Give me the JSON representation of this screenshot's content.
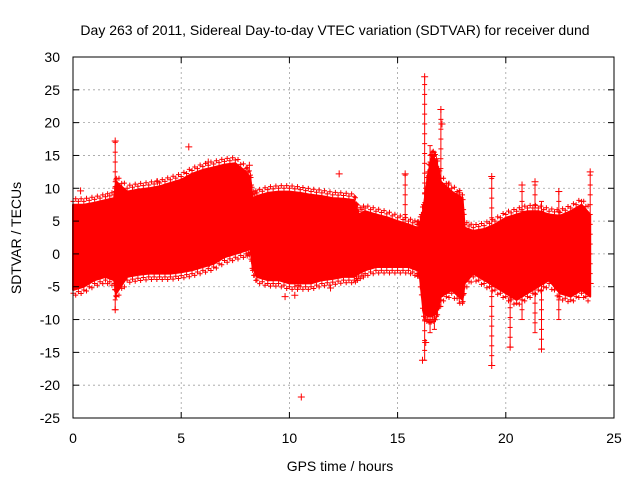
{
  "chart_data": {
    "type": "scatter",
    "title": "Day 263 of 2011, Sidereal Day-to-day VTEC variation (SDTVAR) for receiver dund",
    "xlabel": "GPS time / hours",
    "ylabel": "SDTVAR / TECUs",
    "xlim": [
      0,
      25
    ],
    "ylim": [
      -25,
      30
    ],
    "xticks": [
      0,
      5,
      10,
      15,
      20,
      25
    ],
    "yticks": [
      -25,
      -20,
      -15,
      -10,
      -5,
      0,
      5,
      10,
      15,
      20,
      25,
      30
    ],
    "grid": true,
    "marker": "+",
    "color": "#ff0000",
    "envelope_note": "dense per-epoch scatter spanning roughly -7 to +14 TECU",
    "envelope": {
      "x": [
        0.0,
        0.5,
        1.0,
        1.5,
        1.9,
        2.0,
        2.5,
        3.0,
        3.5,
        4.0,
        4.5,
        5.0,
        5.5,
        6.0,
        6.5,
        7.0,
        7.5,
        8.0,
        8.2,
        8.3,
        8.5,
        9.0,
        9.5,
        10.0,
        10.5,
        11.0,
        11.5,
        12.0,
        12.5,
        13.0,
        13.2,
        13.5,
        14.0,
        14.5,
        15.0,
        15.5,
        15.9,
        16.0,
        16.2,
        16.4,
        16.6,
        16.8,
        17.0,
        17.5,
        18.0,
        18.1,
        18.5,
        19.0,
        19.5,
        20.0,
        20.5,
        21.0,
        21.5,
        22.0,
        22.5,
        23.0,
        23.5,
        23.9
      ],
      "upper": [
        7.5,
        7.5,
        7.8,
        8.2,
        8.5,
        11.0,
        9.5,
        9.8,
        10.0,
        10.3,
        10.8,
        11.3,
        12.2,
        12.8,
        13.2,
        13.6,
        13.8,
        12.5,
        11.5,
        8.5,
        8.8,
        9.3,
        9.5,
        9.5,
        9.3,
        9.0,
        8.8,
        8.5,
        8.4,
        8.2,
        6.0,
        6.5,
        6.0,
        5.6,
        5.0,
        4.5,
        4.0,
        4.0,
        7.0,
        12.0,
        15.0,
        14.0,
        11.0,
        9.5,
        8.5,
        4.0,
        3.5,
        3.8,
        4.5,
        5.5,
        6.0,
        6.5,
        6.5,
        6.0,
        5.8,
        6.5,
        7.5,
        6.0
      ],
      "lower": [
        -5.5,
        -5.0,
        -4.0,
        -3.5,
        -4.0,
        -6.0,
        -3.5,
        -3.2,
        -3.0,
        -3.0,
        -3.0,
        -2.8,
        -2.5,
        -2.0,
        -1.5,
        -0.5,
        0.0,
        0.5,
        0.8,
        -2.0,
        -3.5,
        -4.0,
        -4.0,
        -4.5,
        -4.5,
        -4.5,
        -4.0,
        -3.8,
        -3.5,
        -3.5,
        -3.0,
        -2.5,
        -2.0,
        -2.0,
        -2.0,
        -2.0,
        -2.5,
        -2.5,
        -9.0,
        -9.5,
        -9.5,
        -9.0,
        -6.5,
        -5.5,
        -7.0,
        -4.5,
        -3.0,
        -4.0,
        -5.0,
        -6.0,
        -7.0,
        -6.0,
        -5.0,
        -4.0,
        -6.0,
        -6.5,
        -5.5,
        -6.5
      ]
    },
    "highlighted_points": [
      {
        "x": 1.95,
        "y": 17.2
      },
      {
        "x": 1.95,
        "y": -8.5
      },
      {
        "x": 0.35,
        "y": 9.6
      },
      {
        "x": 3.9,
        "y": 11.0
      },
      {
        "x": 5.35,
        "y": 16.3
      },
      {
        "x": 6.25,
        "y": 14.0
      },
      {
        "x": 6.3,
        "y": -1.5
      },
      {
        "x": 8.15,
        "y": 13.5
      },
      {
        "x": 9.8,
        "y": -6.5
      },
      {
        "x": 10.25,
        "y": -6.3
      },
      {
        "x": 10.4,
        "y": -4.8
      },
      {
        "x": 10.55,
        "y": -21.8
      },
      {
        "x": 11.9,
        "y": -5.2
      },
      {
        "x": 12.3,
        "y": 12.2
      },
      {
        "x": 15.35,
        "y": 12.2
      },
      {
        "x": 16.15,
        "y": -16.2
      },
      {
        "x": 16.25,
        "y": 27.0
      },
      {
        "x": 16.3,
        "y": -13.5
      },
      {
        "x": 17.0,
        "y": 22.0
      },
      {
        "x": 17.05,
        "y": 19.8
      },
      {
        "x": 17.35,
        "y": 10.5
      },
      {
        "x": 17.85,
        "y": 9.3
      },
      {
        "x": 19.35,
        "y": 11.8
      },
      {
        "x": 19.35,
        "y": -17.0
      },
      {
        "x": 20.2,
        "y": -14.2
      },
      {
        "x": 20.75,
        "y": 10.5
      },
      {
        "x": 21.35,
        "y": 11.0
      },
      {
        "x": 21.65,
        "y": -14.5
      },
      {
        "x": 22.45,
        "y": 9.5
      },
      {
        "x": 23.9,
        "y": 12.5
      },
      {
        "x": 23.9,
        "y": -4.5
      }
    ],
    "vertical_spikes": [
      {
        "x": 1.95,
        "low": -8.5,
        "high": 17.2
      },
      {
        "x": 15.35,
        "low": 3.0,
        "high": 12.2
      },
      {
        "x": 16.25,
        "low": -16.2,
        "high": 27.0
      },
      {
        "x": 16.5,
        "low": -12.0,
        "high": 16.5
      },
      {
        "x": 16.7,
        "low": -11.5,
        "high": 15.5
      },
      {
        "x": 17.0,
        "low": -8.0,
        "high": 22.0
      },
      {
        "x": 17.35,
        "low": -6.0,
        "high": 10.5
      },
      {
        "x": 17.85,
        "low": -7.5,
        "high": 9.3
      },
      {
        "x": 19.35,
        "low": -17.0,
        "high": 11.8
      },
      {
        "x": 20.2,
        "low": -14.2,
        "high": 5.0
      },
      {
        "x": 20.75,
        "low": -10.0,
        "high": 10.5
      },
      {
        "x": 21.35,
        "low": -12.0,
        "high": 11.0
      },
      {
        "x": 21.65,
        "low": -14.5,
        "high": 8.0
      },
      {
        "x": 22.45,
        "low": -10.0,
        "high": 9.5
      },
      {
        "x": 23.9,
        "low": -4.5,
        "high": 12.5
      }
    ]
  }
}
